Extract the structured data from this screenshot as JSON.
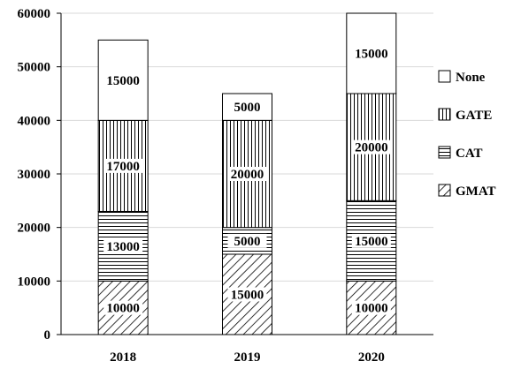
{
  "chart_data": {
    "type": "bar",
    "stacked": true,
    "categories": [
      "2018",
      "2019",
      "2020"
    ],
    "series": [
      {
        "name": "GMAT",
        "values": [
          10000,
          15000,
          10000
        ],
        "pattern": "diagonal-hatch"
      },
      {
        "name": "CAT",
        "values": [
          13000,
          5000,
          15000
        ],
        "pattern": "horizontal-lines"
      },
      {
        "name": "GATE",
        "values": [
          17000,
          20000,
          20000
        ],
        "pattern": "vertical-lines"
      },
      {
        "name": "None",
        "values": [
          15000,
          5000,
          15000
        ],
        "pattern": "solid-white"
      }
    ],
    "y_ticks": [
      0,
      10000,
      20000,
      30000,
      40000,
      50000,
      60000
    ],
    "ylim": [
      0,
      60000
    ],
    "grid": true,
    "legend": "right",
    "title": "",
    "xlabel": "",
    "ylabel": ""
  }
}
